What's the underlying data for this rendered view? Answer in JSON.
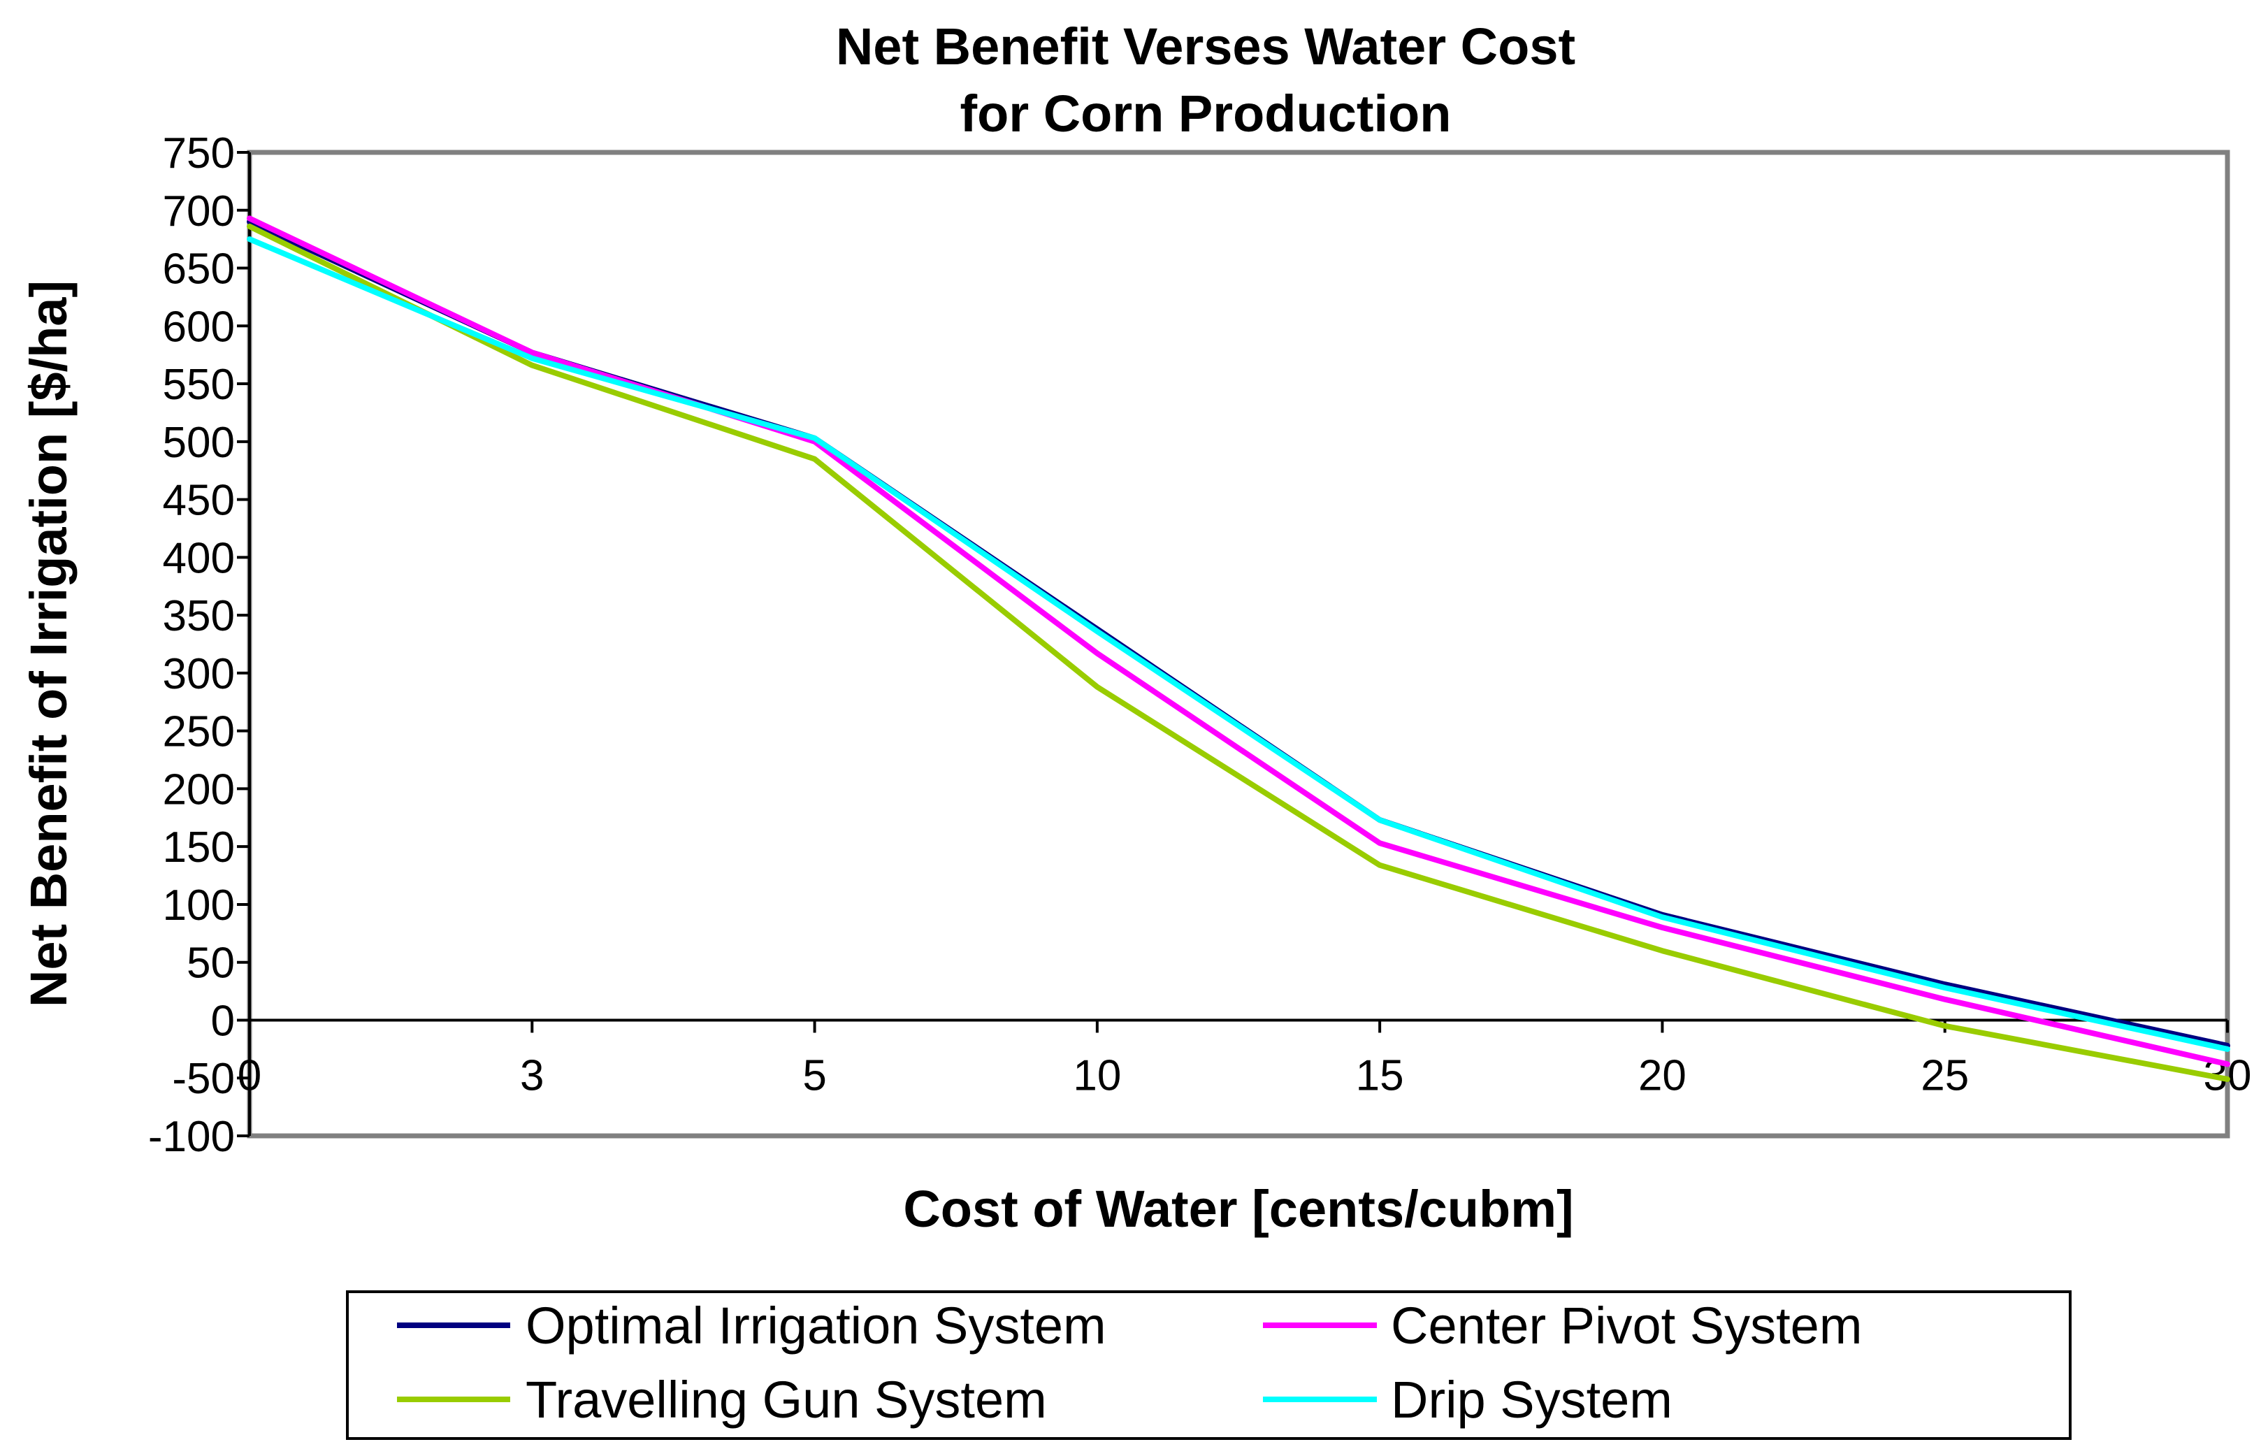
{
  "chart_data": {
    "type": "line",
    "title": [
      "Net Benefit Verses Water Cost",
      "for Corn Production"
    ],
    "xlabel": "Cost of Water [cents/cubm]",
    "ylabel": "Net Benefit of Irrigation [$/ha]",
    "categories": [
      "0",
      "3",
      "5",
      "10",
      "15",
      "20",
      "25",
      "30"
    ],
    "ylim": [
      -100,
      750
    ],
    "yticks": [
      750,
      700,
      650,
      600,
      550,
      500,
      450,
      400,
      350,
      300,
      250,
      200,
      150,
      100,
      50,
      0,
      -50,
      -100
    ],
    "grid": false,
    "legend_position": "bottom",
    "series": [
      {
        "name": "Optimal Irrigation System",
        "color": "#000080",
        "values": [
          690,
          577,
          503,
          338,
          173,
          91,
          31,
          -22
        ]
      },
      {
        "name": "Center Pivot System",
        "color": "#FF00FF",
        "values": [
          693,
          577,
          500,
          317,
          153,
          80,
          18,
          -38
        ]
      },
      {
        "name": "Travelling Gun System",
        "color": "#99CC00",
        "values": [
          686,
          566,
          485,
          288,
          134,
          60,
          -5,
          -51
        ]
      },
      {
        "name": "Drip System",
        "color": "#00FFFF",
        "values": [
          675,
          572,
          503,
          336,
          173,
          89,
          28,
          -25
        ]
      }
    ]
  }
}
